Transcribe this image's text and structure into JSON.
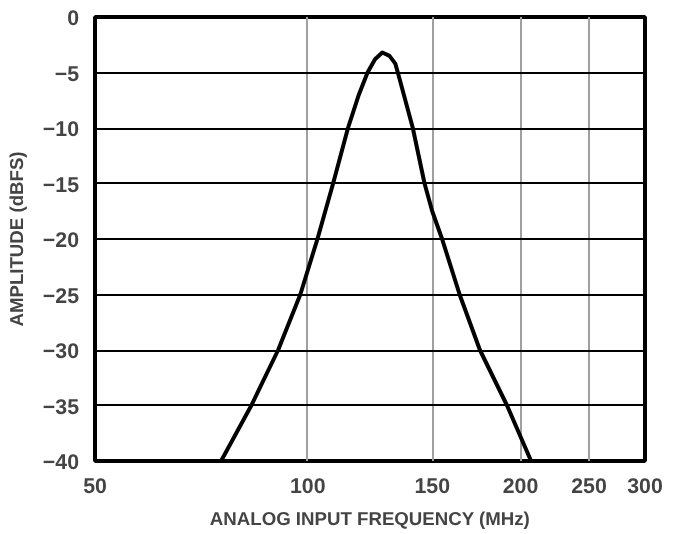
{
  "chart_data": {
    "type": "line",
    "xlabel": "ANALOG INPUT FREQUENCY (MHz)",
    "ylabel": "AMPLITUDE (dBFS)",
    "log": "x",
    "xlim": [
      50,
      300
    ],
    "xticks": [
      50,
      100,
      150,
      200,
      250,
      300
    ],
    "ylim": [
      -40,
      0
    ],
    "yticks": [
      -40,
      -35,
      -30,
      -25,
      -20,
      -15,
      -10,
      -5,
      0
    ],
    "grid": true,
    "series": [
      {
        "color": "#000000",
        "x": [
          75.4,
          83.2,
          90.8,
          97.6,
          103.2,
          108.6,
          114.0,
          118.1,
          121.5,
          124.5,
          127.5,
          130.5,
          133.0,
          134.1,
          140.8,
          146.3,
          150.0,
          154.9,
          164.0,
          175.2,
          191.4,
          207.0
        ],
        "values": [
          -40,
          -35,
          -30,
          -25,
          -20,
          -15,
          -10,
          -7,
          -5,
          -3.8,
          -3.2,
          -3.5,
          -4.2,
          -5,
          -10,
          -15,
          -17.5,
          -20,
          -25,
          -30,
          -35,
          -40
        ]
      }
    ]
  }
}
